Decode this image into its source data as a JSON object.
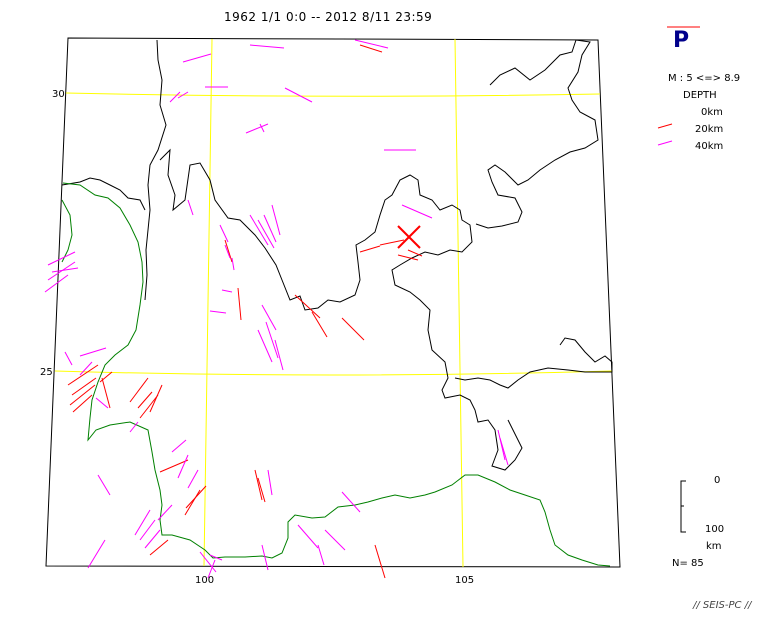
{
  "title": "1962 1/1 0:0 -- 2012 8/11 23:59",
  "axes": {
    "lat_labels": [
      "30",
      "25"
    ],
    "lon_labels": [
      "100",
      "105"
    ]
  },
  "legend": {
    "wave": "P",
    "magnitude": "M : 5 <=> 8.9",
    "depth_title": "DEPTH",
    "depth_rows": [
      {
        "label": "0km",
        "color": ""
      },
      {
        "label": "20km",
        "color": "#ff0000"
      },
      {
        "label": "40km",
        "color": "#ff00ff"
      }
    ]
  },
  "scale": {
    "top": "0",
    "bottom": "100",
    "unit": "km"
  },
  "count": "N= 85",
  "footer": "// SEIS-PC //",
  "colors": {
    "grid": "#ffff00",
    "border": "#000000",
    "coast": "#008000",
    "shallow": "#ff0000",
    "deep": "#ff00ff",
    "marker": "#ff0000",
    "legend_letter": "#00008b"
  },
  "map_data": {
    "projection": "conic",
    "lat_lines": [
      30,
      25
    ],
    "lon_lines": [
      100,
      105
    ],
    "epicenter_marker": "cross",
    "event_count": 85
  }
}
